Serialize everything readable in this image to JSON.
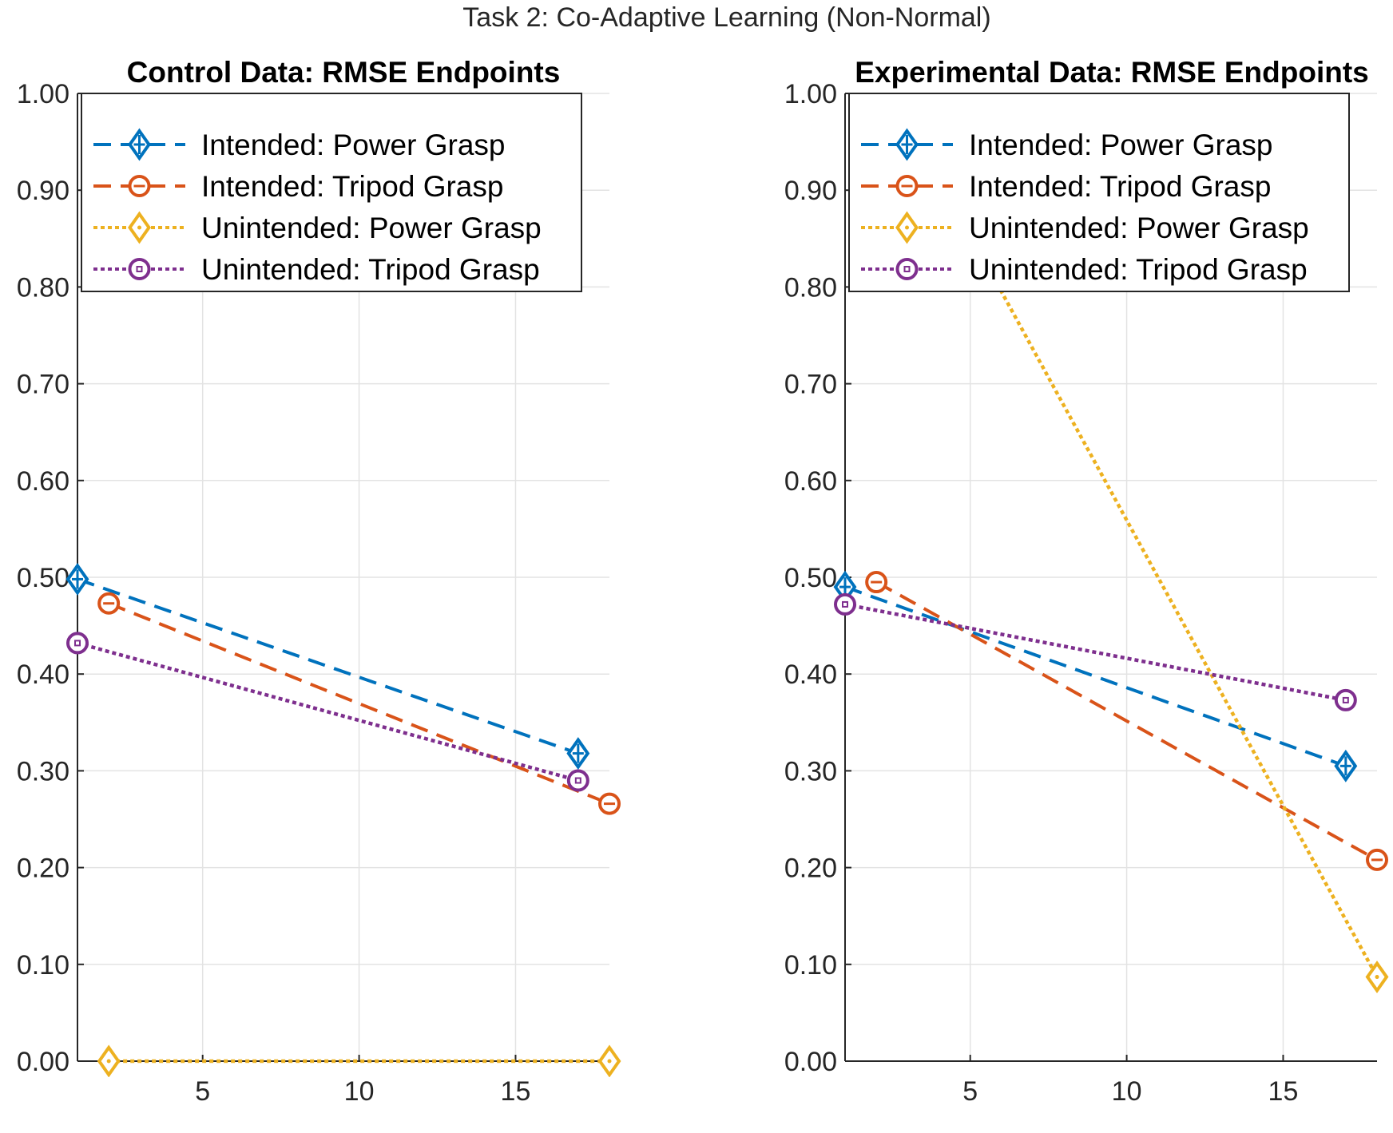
{
  "figure": {
    "title": "Task 2: Co-Adaptive Learning (Non-Normal)"
  },
  "chart_data": [
    {
      "type": "line",
      "title": "Control Data: RMSE Endpoints",
      "xlabel": "",
      "ylabel": "",
      "xlim": [
        1,
        18
      ],
      "ylim": [
        0,
        1
      ],
      "xticks": [
        "5",
        "10",
        "15"
      ],
      "yticks": [
        "0.00",
        "0.10",
        "0.20",
        "0.30",
        "0.40",
        "0.50",
        "0.60",
        "0.70",
        "0.80",
        "0.90",
        "1.00"
      ],
      "grid": true,
      "legend_position": "top",
      "series": [
        {
          "name": "Intended: Power Grasp",
          "x": [
            1,
            17
          ],
          "y": [
            0.498,
            0.318
          ],
          "color": "#0072BD",
          "line": "dashed",
          "marker": "diamond-plus"
        },
        {
          "name": "Intended: Tripod Grasp",
          "x": [
            2,
            18
          ],
          "y": [
            0.473,
            0.266
          ],
          "color": "#D95319",
          "line": "dashed",
          "marker": "circle-minus"
        },
        {
          "name": "Unintended: Power Grasp",
          "x": [
            2,
            18
          ],
          "y": [
            0.0,
            0.0
          ],
          "color": "#EDB120",
          "line": "dotted",
          "marker": "diamond-dot"
        },
        {
          "name": "Unintended: Tripod Grasp",
          "x": [
            1,
            17
          ],
          "y": [
            0.432,
            0.29
          ],
          "color": "#7E2F8E",
          "line": "dotted",
          "marker": "circle-dot"
        }
      ]
    },
    {
      "type": "line",
      "title": "Experimental Data: RMSE Endpoints",
      "xlabel": "",
      "ylabel": "",
      "xlim": [
        1,
        18
      ],
      "ylim": [
        0,
        1
      ],
      "xticks": [
        "5",
        "10",
        "15"
      ],
      "yticks": [
        "0.00",
        "0.10",
        "0.20",
        "0.30",
        "0.40",
        "0.50",
        "0.60",
        "0.70",
        "0.80",
        "0.90",
        "1.00"
      ],
      "grid": true,
      "legend_position": "top",
      "series": [
        {
          "name": "Intended: Power Grasp",
          "x": [
            1,
            17
          ],
          "y": [
            0.49,
            0.305
          ],
          "color": "#0072BD",
          "line": "dashed",
          "marker": "diamond-plus"
        },
        {
          "name": "Intended: Tripod Grasp",
          "x": [
            2,
            18
          ],
          "y": [
            0.495,
            0.208
          ],
          "color": "#D95319",
          "line": "dashed",
          "marker": "circle-minus"
        },
        {
          "name": "Unintended: Power Grasp",
          "x": [
            1,
            18
          ],
          "y": [
            1.09,
            0.087
          ],
          "color": "#EDB120",
          "line": "dotted",
          "marker": "diamond-dot"
        },
        {
          "name": "Unintended: Tripod Grasp",
          "x": [
            1,
            17
          ],
          "y": [
            0.472,
            0.373
          ],
          "color": "#7E2F8E",
          "line": "dotted",
          "marker": "circle-dot"
        }
      ]
    }
  ]
}
